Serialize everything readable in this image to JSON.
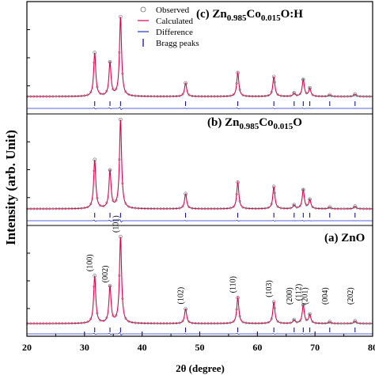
{
  "chart_data": {
    "type": "line",
    "xlabel": "2θ (degree)",
    "ylabel": "Intensity (arb. Unit)",
    "xlim": [
      20,
      80
    ],
    "xticks": [
      "20",
      "30",
      "40",
      "50",
      "60",
      "70",
      "80"
    ],
    "legend": {
      "placement": "top-center",
      "entries": [
        "Observed",
        "Calculated",
        "Difference",
        "Bragg peaks"
      ]
    },
    "colors": {
      "observed": "#666666",
      "calculated": "#e0004a",
      "difference": "#2233cc",
      "bragg": "#000080"
    },
    "bragg_positions": [
      31.77,
      34.42,
      36.25,
      47.54,
      56.6,
      62.86,
      66.38,
      67.96,
      69.1,
      72.56,
      76.95
    ],
    "peaks": [
      {
        "hkl": "(100)",
        "x": 31.77,
        "y": 55
      },
      {
        "hkl": "(002)",
        "x": 34.42,
        "y": 42
      },
      {
        "hkl": "(101)",
        "x": 36.25,
        "y": 100
      },
      {
        "hkl": "(102)",
        "x": 47.54,
        "y": 17
      },
      {
        "hkl": "(110)",
        "x": 56.6,
        "y": 30
      },
      {
        "hkl": "(103)",
        "x": 62.86,
        "y": 25
      },
      {
        "hkl": "(200)",
        "x": 66.38,
        "y": 4
      },
      {
        "hkl": "(112)",
        "x": 67.96,
        "y": 21
      },
      {
        "hkl": "(201)",
        "x": 69.1,
        "y": 10
      },
      {
        "hkl": "(004)",
        "x": 72.56,
        "y": 2
      },
      {
        "hkl": "(202)",
        "x": 76.95,
        "y": 3
      }
    ],
    "panels": [
      {
        "label_pre": "(c) Zn",
        "sub1": "0.985",
        "mid": "Co",
        "sub2": "0.015",
        "post": "O:H"
      },
      {
        "label_pre": "(b) Zn",
        "sub1": "0.985",
        "mid": "Co",
        "sub2": "0.015",
        "post": "O"
      },
      {
        "label_pre": "(a) ZnO",
        "sub1": "",
        "mid": "",
        "sub2": "",
        "post": ""
      }
    ]
  }
}
